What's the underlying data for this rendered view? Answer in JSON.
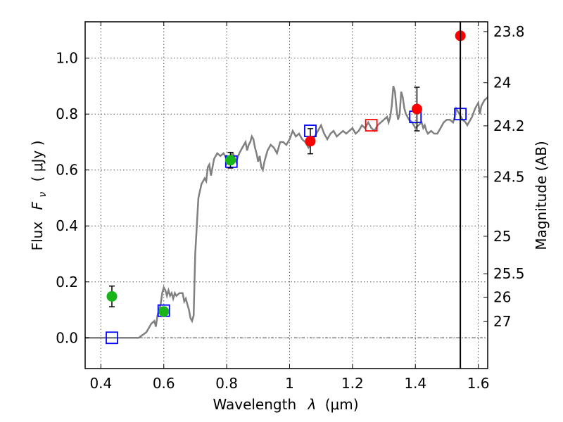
{
  "chart_data": {
    "type": "scatter",
    "xlabel_main": "Wavelength",
    "xlabel_symbol": "λ",
    "xlabel_unit": "(μm)",
    "ylabel_main": "Flux",
    "ylabel_symbol": "F",
    "ylabel_subscript": "ν",
    "ylabel_unit": "( μJy )",
    "y2label": "Magnitude (AB)",
    "xlim": [
      0.35,
      1.63
    ],
    "ylim": [
      -0.11,
      1.13
    ],
    "grid": true,
    "grid_style": "dotted",
    "x_ticks": [
      0.4,
      0.6,
      0.8,
      1.0,
      1.2,
      1.4,
      1.6
    ],
    "x_tick_labels": [
      "0.4",
      "0.6",
      "0.8",
      "1",
      "1.2",
      "1.4",
      "1.6"
    ],
    "y_ticks": [
      0.0,
      0.2,
      0.4,
      0.6,
      0.8,
      1.0
    ],
    "y_tick_labels": [
      "0.0",
      "0.2",
      "0.4",
      "0.6",
      "0.8",
      "1.0"
    ],
    "y2_ticks": [
      {
        "flux": 1.095,
        "label": "23.8"
      },
      {
        "flux": 0.912,
        "label": "24"
      },
      {
        "flux": 0.758,
        "label": "24.2"
      },
      {
        "flux": 0.575,
        "label": "24.5"
      },
      {
        "flux": 0.363,
        "label": "25"
      },
      {
        "flux": 0.229,
        "label": "25.5"
      },
      {
        "flux": 0.145,
        "label": "26"
      },
      {
        "flux": 0.058,
        "label": "27"
      }
    ],
    "vertical_line_x": 1.543,
    "colors": {
      "model": "#808080",
      "green": "#19b419",
      "red": "#ff0000",
      "square": "#0000ff",
      "square_alt": "#ff0000",
      "errorbar": "#000000",
      "vline": "#000000",
      "grid": "#555555"
    },
    "series": [
      {
        "kind": "model_line",
        "points": [
          [
            0.35,
            0.0
          ],
          [
            0.52,
            0.0
          ],
          [
            0.545,
            0.02
          ],
          [
            0.56,
            0.05
          ],
          [
            0.57,
            0.06
          ],
          [
            0.575,
            0.04
          ],
          [
            0.58,
            0.08
          ],
          [
            0.59,
            0.12
          ],
          [
            0.595,
            0.16
          ],
          [
            0.6,
            0.18
          ],
          [
            0.605,
            0.17
          ],
          [
            0.61,
            0.15
          ],
          [
            0.615,
            0.17
          ],
          [
            0.62,
            0.15
          ],
          [
            0.625,
            0.16
          ],
          [
            0.63,
            0.14
          ],
          [
            0.635,
            0.16
          ],
          [
            0.64,
            0.15
          ],
          [
            0.65,
            0.16
          ],
          [
            0.66,
            0.16
          ],
          [
            0.665,
            0.13
          ],
          [
            0.67,
            0.14
          ],
          [
            0.675,
            0.12
          ],
          [
            0.68,
            0.1
          ],
          [
            0.685,
            0.07
          ],
          [
            0.69,
            0.06
          ],
          [
            0.695,
            0.08
          ],
          [
            0.7,
            0.3
          ],
          [
            0.71,
            0.5
          ],
          [
            0.72,
            0.55
          ],
          [
            0.73,
            0.57
          ],
          [
            0.735,
            0.56
          ],
          [
            0.74,
            0.61
          ],
          [
            0.745,
            0.62
          ],
          [
            0.75,
            0.58
          ],
          [
            0.76,
            0.64
          ],
          [
            0.77,
            0.66
          ],
          [
            0.78,
            0.65
          ],
          [
            0.79,
            0.66
          ],
          [
            0.8,
            0.64
          ],
          [
            0.81,
            0.65
          ],
          [
            0.82,
            0.66
          ],
          [
            0.83,
            0.63
          ],
          [
            0.84,
            0.66
          ],
          [
            0.85,
            0.68
          ],
          [
            0.86,
            0.7
          ],
          [
            0.865,
            0.67
          ],
          [
            0.87,
            0.69
          ],
          [
            0.875,
            0.7
          ],
          [
            0.88,
            0.72
          ],
          [
            0.885,
            0.71
          ],
          [
            0.89,
            0.68
          ],
          [
            0.895,
            0.66
          ],
          [
            0.9,
            0.63
          ],
          [
            0.905,
            0.65
          ],
          [
            0.91,
            0.61
          ],
          [
            0.915,
            0.6
          ],
          [
            0.92,
            0.63
          ],
          [
            0.93,
            0.67
          ],
          [
            0.94,
            0.69
          ],
          [
            0.95,
            0.68
          ],
          [
            0.96,
            0.66
          ],
          [
            0.97,
            0.7
          ],
          [
            0.98,
            0.7
          ],
          [
            0.99,
            0.69
          ],
          [
            1.0,
            0.71
          ],
          [
            1.01,
            0.74
          ],
          [
            1.02,
            0.72
          ],
          [
            1.03,
            0.73
          ],
          [
            1.04,
            0.71
          ],
          [
            1.05,
            0.7
          ],
          [
            1.06,
            0.68
          ],
          [
            1.07,
            0.7
          ],
          [
            1.08,
            0.72
          ],
          [
            1.09,
            0.74
          ],
          [
            1.1,
            0.76
          ],
          [
            1.11,
            0.73
          ],
          [
            1.12,
            0.71
          ],
          [
            1.13,
            0.73
          ],
          [
            1.14,
            0.74
          ],
          [
            1.15,
            0.72
          ],
          [
            1.16,
            0.73
          ],
          [
            1.17,
            0.74
          ],
          [
            1.18,
            0.73
          ],
          [
            1.19,
            0.74
          ],
          [
            1.2,
            0.75
          ],
          [
            1.21,
            0.73
          ],
          [
            1.22,
            0.74
          ],
          [
            1.23,
            0.76
          ],
          [
            1.24,
            0.75
          ],
          [
            1.25,
            0.77
          ],
          [
            1.26,
            0.75
          ],
          [
            1.27,
            0.74
          ],
          [
            1.28,
            0.76
          ],
          [
            1.29,
            0.77
          ],
          [
            1.3,
            0.78
          ],
          [
            1.31,
            0.79
          ],
          [
            1.315,
            0.77
          ],
          [
            1.32,
            0.79
          ],
          [
            1.325,
            0.83
          ],
          [
            1.33,
            0.9
          ],
          [
            1.335,
            0.88
          ],
          [
            1.34,
            0.82
          ],
          [
            1.345,
            0.78
          ],
          [
            1.35,
            0.8
          ],
          [
            1.355,
            0.88
          ],
          [
            1.36,
            0.86
          ],
          [
            1.365,
            0.82
          ],
          [
            1.37,
            0.8
          ],
          [
            1.38,
            0.78
          ],
          [
            1.39,
            0.77
          ],
          [
            1.4,
            0.75
          ],
          [
            1.41,
            0.76
          ],
          [
            1.42,
            0.77
          ],
          [
            1.425,
            0.75
          ],
          [
            1.43,
            0.76
          ],
          [
            1.435,
            0.74
          ],
          [
            1.44,
            0.73
          ],
          [
            1.45,
            0.74
          ],
          [
            1.46,
            0.73
          ],
          [
            1.47,
            0.73
          ],
          [
            1.48,
            0.75
          ],
          [
            1.49,
            0.77
          ],
          [
            1.5,
            0.78
          ],
          [
            1.51,
            0.78
          ],
          [
            1.52,
            0.77
          ],
          [
            1.525,
            0.79
          ],
          [
            1.53,
            0.82
          ],
          [
            1.54,
            0.8
          ],
          [
            1.55,
            0.78
          ],
          [
            1.56,
            0.77
          ],
          [
            1.565,
            0.76
          ],
          [
            1.57,
            0.77
          ],
          [
            1.58,
            0.79
          ],
          [
            1.59,
            0.82
          ],
          [
            1.6,
            0.84
          ],
          [
            1.605,
            0.8
          ],
          [
            1.61,
            0.83
          ],
          [
            1.62,
            0.85
          ],
          [
            1.63,
            0.86
          ]
        ]
      },
      {
        "kind": "green_points",
        "points": [
          {
            "x": 0.435,
            "y": 0.148,
            "err": 0.037
          },
          {
            "x": 0.6,
            "y": 0.094,
            "err": 0.015
          },
          {
            "x": 0.812,
            "y": 0.635,
            "err": 0.028
          }
        ]
      },
      {
        "kind": "red_points",
        "points": [
          {
            "x": 1.066,
            "y": 0.703,
            "err": 0.045
          },
          {
            "x": 1.405,
            "y": 0.818,
            "err": 0.078
          },
          {
            "x": 1.543,
            "y": 1.08,
            "err": 0
          }
        ]
      },
      {
        "kind": "model_squares",
        "points": [
          {
            "x": 0.435,
            "y": 0.0,
            "style": "square"
          },
          {
            "x": 0.6,
            "y": 0.097,
            "style": "square"
          },
          {
            "x": 0.815,
            "y": 0.63,
            "style": "square"
          },
          {
            "x": 1.066,
            "y": 0.74,
            "style": "square"
          },
          {
            "x": 1.26,
            "y": 0.76,
            "style": "square_alt"
          },
          {
            "x": 1.4,
            "y": 0.79,
            "style": "square"
          },
          {
            "x": 1.543,
            "y": 0.8,
            "style": "square"
          }
        ]
      }
    ]
  }
}
